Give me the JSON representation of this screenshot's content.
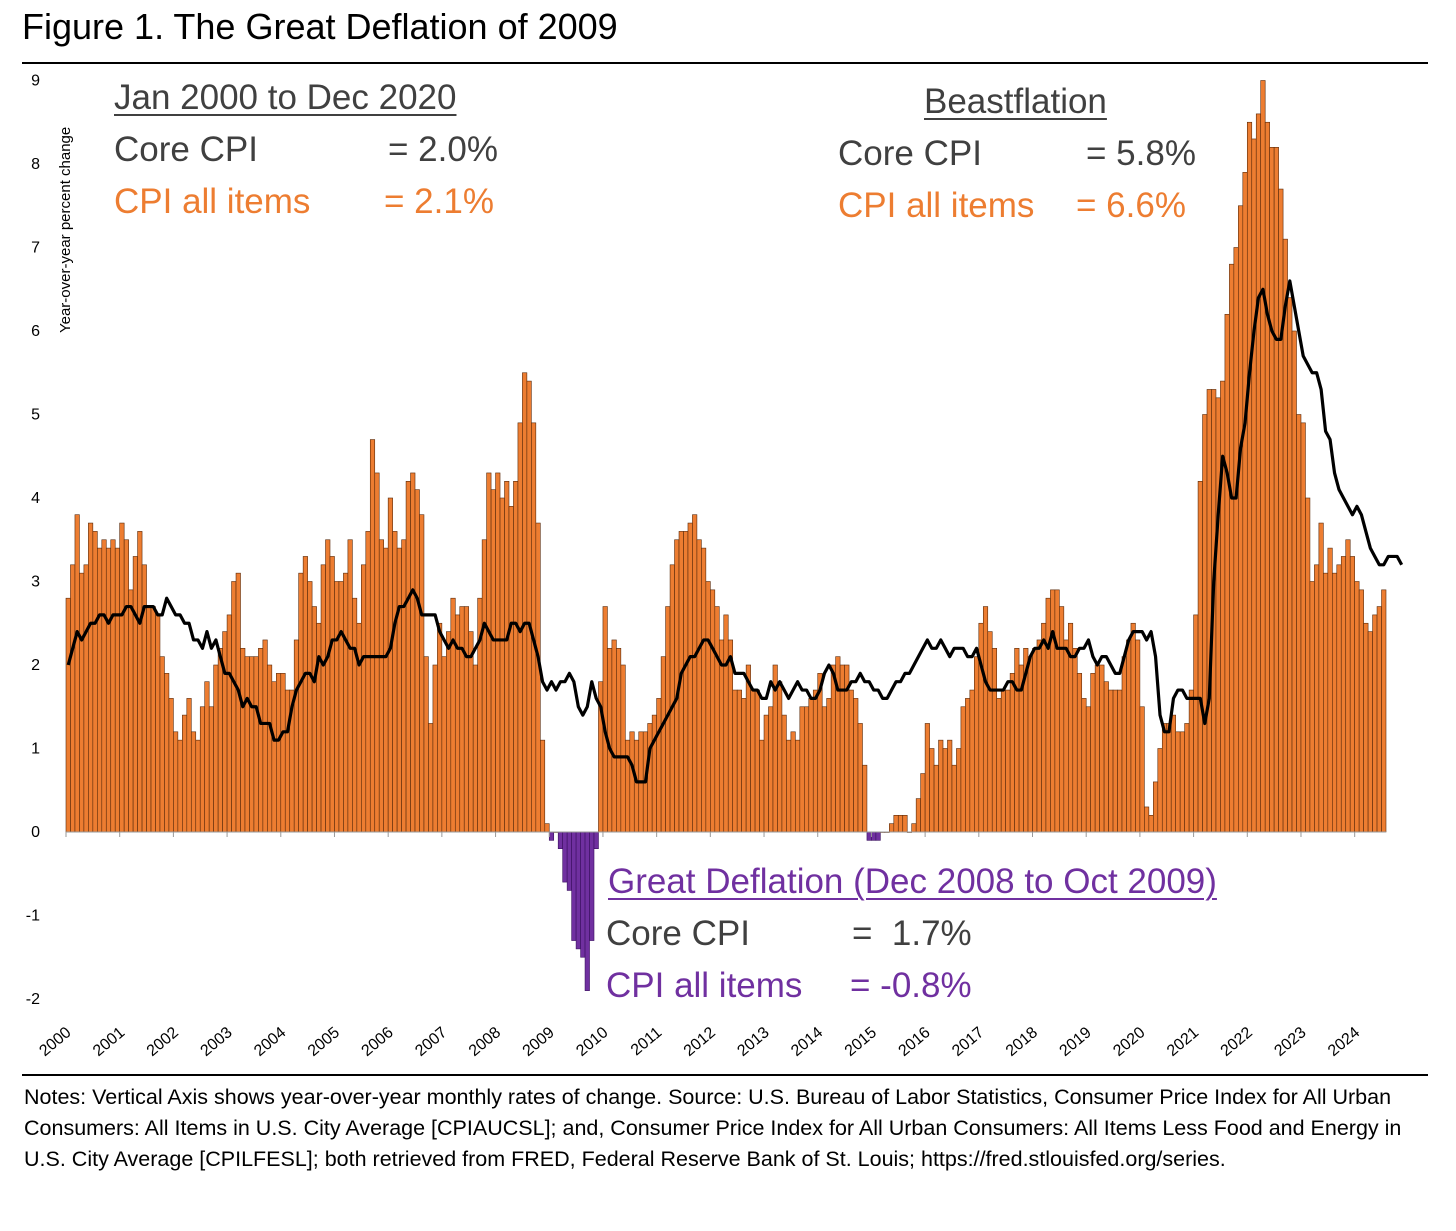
{
  "title": "Figure 1. The Great Deflation of 2009",
  "notes": "Notes: Vertical Axis shows year-over-year monthly rates of change. Source: U.S. Bureau of Labor Statistics, Consumer Price Index for All Urban Consumers: All Items in U.S. City Average [CPIAUCSL]; and, Consumer Price Index for All Urban Consumers: All Items Less Food and Energy in U.S. City Average [CPILFESL]; both retrieved from FRED, Federal Reserve Bank of St. Louis; https://fred.stlouisfed.org/series.",
  "annotations": {
    "period": {
      "heading": "Jan 2000 to Dec 2020",
      "core_label": "Core CPI",
      "core_value": "= 2.0%",
      "all_label": "CPI all items",
      "all_value": "= 2.1%"
    },
    "beast": {
      "heading": "Beastflation",
      "core_label": "Core CPI",
      "core_value": "= 5.8%",
      "all_label": "CPI all items",
      "all_value": "= 6.6%"
    },
    "deflation": {
      "heading": "Great Deflation (Dec 2008 to Oct 2009)",
      "core_label": "Core CPI",
      "core_value": "=  1.7%",
      "all_label": "CPI all items",
      "all_value": "= -0.8%"
    }
  },
  "colors": {
    "bars": "#ed7d31",
    "bars_negative": "#7030a0",
    "line": "#000000",
    "bar_edge": "#5a2a0a",
    "gray_text": "#404040",
    "orange_text": "#ed7d31",
    "purple_text": "#7030a0"
  },
  "chart_data": {
    "type": "bar",
    "ylabel": "Year-over-year percent change",
    "ylim": [
      -2,
      9
    ],
    "yticks": [
      -2,
      -1,
      0,
      1,
      2,
      3,
      4,
      5,
      6,
      7,
      8,
      9
    ],
    "year_labels": [
      "2000",
      "2001",
      "2002",
      "2003",
      "2004",
      "2005",
      "2006",
      "2007",
      "2008",
      "2009",
      "2010",
      "2011",
      "2012",
      "2013",
      "2014",
      "2015",
      "2016",
      "2017",
      "2018",
      "2019",
      "2020",
      "2021",
      "2022",
      "2023",
      "2024"
    ],
    "series": [
      {
        "name": "CPI all items",
        "start": "2000-01",
        "frequency": "monthly",
        "values": [
          2.8,
          3.2,
          3.8,
          3.1,
          3.2,
          3.7,
          3.6,
          3.4,
          3.5,
          3.4,
          3.5,
          3.4,
          3.7,
          3.5,
          2.9,
          3.3,
          3.6,
          3.2,
          2.7,
          2.7,
          2.6,
          2.1,
          1.9,
          1.6,
          1.2,
          1.1,
          1.4,
          1.6,
          1.2,
          1.1,
          1.5,
          1.8,
          1.5,
          2.0,
          2.2,
          2.4,
          2.6,
          3.0,
          3.1,
          2.2,
          2.1,
          2.1,
          2.1,
          2.2,
          2.3,
          2.0,
          1.8,
          1.9,
          1.9,
          1.7,
          1.7,
          2.3,
          3.1,
          3.3,
          3.0,
          2.7,
          2.5,
          3.2,
          3.5,
          3.3,
          3.0,
          3.0,
          3.1,
          3.5,
          2.8,
          2.5,
          3.2,
          3.6,
          4.7,
          4.3,
          3.5,
          3.4,
          4.0,
          3.6,
          3.4,
          3.5,
          4.2,
          4.3,
          4.1,
          3.8,
          2.1,
          1.3,
          2.0,
          2.5,
          2.1,
          2.4,
          2.8,
          2.6,
          2.7,
          2.7,
          2.4,
          2.0,
          2.8,
          3.5,
          4.3,
          4.1,
          4.3,
          4.0,
          4.2,
          3.9,
          4.2,
          4.9,
          5.5,
          5.4,
          4.9,
          3.7,
          1.1,
          0.1,
          -0.1,
          0.0,
          -0.2,
          -0.6,
          -0.7,
          -1.3,
          -1.4,
          -1.5,
          -1.9,
          -1.3,
          -0.2,
          1.8,
          2.7,
          2.2,
          2.3,
          2.2,
          2.0,
          1.1,
          1.2,
          1.1,
          1.2,
          1.2,
          1.3,
          1.4,
          1.6,
          2.1,
          2.7,
          3.2,
          3.5,
          3.6,
          3.6,
          3.7,
          3.8,
          3.5,
          3.4,
          3.0,
          2.9,
          2.7,
          2.3,
          2.6,
          2.3,
          1.7,
          1.7,
          1.6,
          2.0,
          1.7,
          1.7,
          1.1,
          1.4,
          1.5,
          2.0,
          1.8,
          1.4,
          1.1,
          1.2,
          1.1,
          1.5,
          1.5,
          1.6,
          1.7,
          1.9,
          1.5,
          1.6,
          2.0,
          2.1,
          2.0,
          2.0,
          1.7,
          1.6,
          1.3,
          0.8,
          -0.1,
          -0.1,
          -0.1,
          0.0,
          0.0,
          0.1,
          0.2,
          0.2,
          0.2,
          0.0,
          0.1,
          0.4,
          0.7,
          1.3,
          1.0,
          0.8,
          1.1,
          1.0,
          1.1,
          0.8,
          1.0,
          1.5,
          1.6,
          1.7,
          2.1,
          2.5,
          2.7,
          2.4,
          2.2,
          1.6,
          1.7,
          1.7,
          1.9,
          2.2,
          2.0,
          2.2,
          2.1,
          2.2,
          2.3,
          2.5,
          2.8,
          2.9,
          2.9,
          2.7,
          2.3,
          2.5,
          2.2,
          1.9,
          1.6,
          1.5,
          1.9,
          2.0,
          2.0,
          1.8,
          1.7,
          1.7,
          1.7,
          2.1,
          2.3,
          2.5,
          2.3,
          1.5,
          0.3,
          0.2,
          0.6,
          1.0,
          1.3,
          1.3,
          1.4,
          1.2,
          1.2,
          1.3,
          1.7,
          2.6,
          4.2,
          5.0,
          5.3,
          5.3,
          5.2,
          5.4,
          6.2,
          6.8,
          7.0,
          7.5,
          7.9,
          8.5,
          8.3,
          8.6,
          9.0,
          8.5,
          8.2,
          8.2,
          7.7,
          7.1,
          6.4,
          6.0,
          5.0,
          4.9,
          4.0,
          3.0,
          3.2,
          3.7,
          3.1,
          3.4,
          3.1,
          3.2,
          3.3,
          3.5,
          3.3,
          3.0,
          2.9,
          2.5,
          2.4,
          2.6,
          2.7,
          2.9
        ]
      },
      {
        "name": "Core CPI",
        "start": "2000-01",
        "frequency": "monthly",
        "values": [
          2.0,
          2.2,
          2.4,
          2.3,
          2.4,
          2.5,
          2.5,
          2.6,
          2.6,
          2.5,
          2.6,
          2.6,
          2.6,
          2.7,
          2.7,
          2.6,
          2.5,
          2.7,
          2.7,
          2.7,
          2.6,
          2.6,
          2.8,
          2.7,
          2.6,
          2.6,
          2.5,
          2.5,
          2.3,
          2.3,
          2.2,
          2.4,
          2.2,
          2.3,
          2.1,
          1.9,
          1.9,
          1.8,
          1.7,
          1.5,
          1.6,
          1.5,
          1.5,
          1.3,
          1.3,
          1.3,
          1.1,
          1.1,
          1.2,
          1.2,
          1.5,
          1.7,
          1.8,
          1.9,
          1.9,
          1.8,
          2.1,
          2.0,
          2.1,
          2.3,
          2.3,
          2.4,
          2.3,
          2.2,
          2.2,
          2.0,
          2.1,
          2.1,
          2.1,
          2.1,
          2.1,
          2.1,
          2.2,
          2.5,
          2.7,
          2.7,
          2.8,
          2.9,
          2.8,
          2.6,
          2.6,
          2.6,
          2.6,
          2.4,
          2.3,
          2.2,
          2.3,
          2.2,
          2.2,
          2.1,
          2.1,
          2.2,
          2.3,
          2.5,
          2.4,
          2.3,
          2.3,
          2.3,
          2.3,
          2.5,
          2.5,
          2.4,
          2.5,
          2.5,
          2.3,
          2.1,
          1.8,
          1.7,
          1.8,
          1.7,
          1.8,
          1.8,
          1.9,
          1.8,
          1.5,
          1.4,
          1.5,
          1.8,
          1.6,
          1.5,
          1.2,
          1.0,
          0.9,
          0.9,
          0.9,
          0.9,
          0.8,
          0.6,
          0.6,
          0.6,
          1.0,
          1.1,
          1.2,
          1.3,
          1.4,
          1.5,
          1.6,
          1.9,
          2.0,
          2.1,
          2.1,
          2.2,
          2.3,
          2.3,
          2.2,
          2.1,
          2.0,
          2.0,
          2.1,
          1.9,
          1.9,
          1.9,
          1.8,
          1.7,
          1.7,
          1.6,
          1.6,
          1.8,
          1.7,
          1.8,
          1.7,
          1.6,
          1.7,
          1.8,
          1.7,
          1.7,
          1.6,
          1.6,
          1.7,
          1.9,
          2.0,
          1.9,
          1.7,
          1.7,
          1.7,
          1.8,
          1.8,
          1.9,
          1.8,
          1.8,
          1.7,
          1.7,
          1.6,
          1.6,
          1.7,
          1.8,
          1.8,
          1.9,
          1.9,
          2.0,
          2.1,
          2.2,
          2.3,
          2.2,
          2.2,
          2.3,
          2.2,
          2.1,
          2.2,
          2.2,
          2.2,
          2.1,
          2.1,
          2.2,
          2.0,
          1.8,
          1.7,
          1.7,
          1.7,
          1.7,
          1.8,
          1.8,
          1.7,
          1.7,
          1.9,
          2.1,
          2.2,
          2.2,
          2.3,
          2.2,
          2.4,
          2.2,
          2.2,
          2.2,
          2.1,
          2.1,
          2.2,
          2.2,
          2.3,
          2.1,
          2.0,
          2.1,
          2.1,
          2.0,
          1.9,
          1.9,
          2.1,
          2.3,
          2.4,
          2.4,
          2.4,
          2.3,
          2.4,
          2.1,
          1.4,
          1.2,
          1.2,
          1.6,
          1.7,
          1.7,
          1.6,
          1.6,
          1.6,
          1.6,
          1.3,
          1.6,
          3.0,
          3.8,
          4.5,
          4.3,
          4.0,
          4.0,
          4.6,
          4.9,
          5.5,
          6.0,
          6.4,
          6.5,
          6.2,
          6.0,
          5.9,
          5.9,
          6.3,
          6.6,
          6.3,
          6.0,
          5.7,
          5.6,
          5.5,
          5.5,
          5.3,
          4.8,
          4.7,
          4.3,
          4.1,
          4.0,
          3.9,
          3.8,
          3.9,
          3.8,
          3.6,
          3.4,
          3.3,
          3.2,
          3.2,
          3.3,
          3.3,
          3.3,
          3.2
        ]
      }
    ]
  }
}
